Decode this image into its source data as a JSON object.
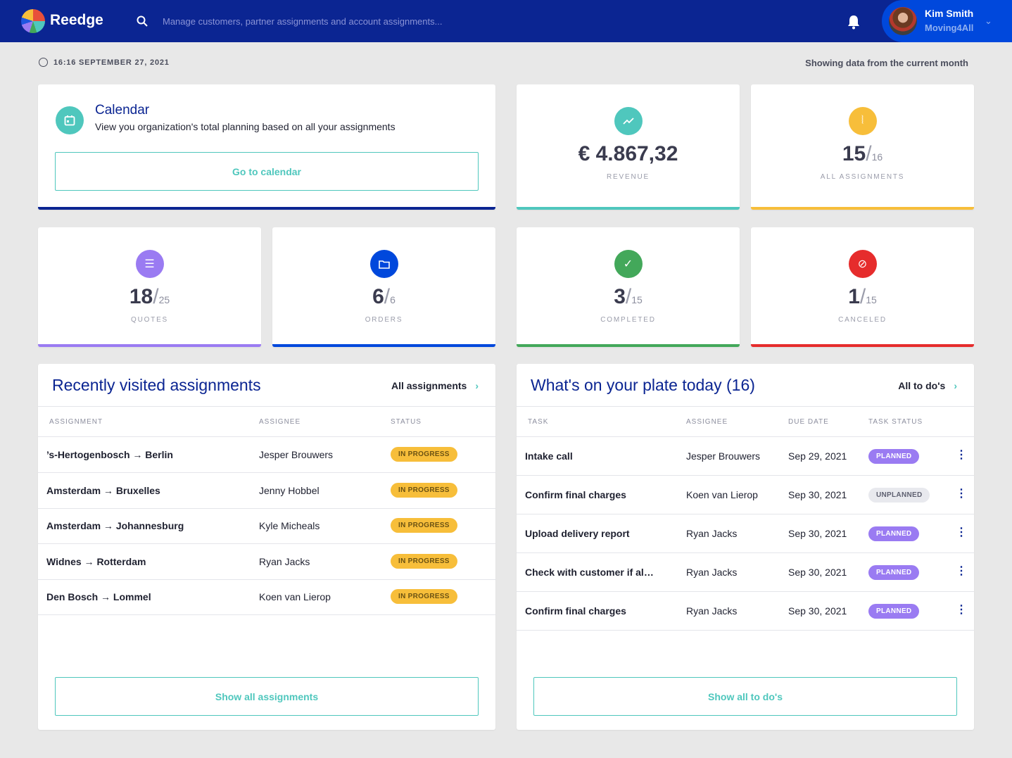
{
  "header": {
    "brand": "Reedge",
    "search_placeholder": "Manage customers, partner assignments and account assignments...",
    "user_name": "Kim Smith",
    "user_org": "Moving4All"
  },
  "meta": {
    "datetime": "16:16 SEPTEMBER 27, 2021",
    "showing": "Showing data from the current month"
  },
  "calendar": {
    "title": "Calendar",
    "description": "View you organization's total planning based on all your assignments",
    "button": "Go to calendar"
  },
  "stats": [
    {
      "value": "€ 4.867,32",
      "label": "REVENUE",
      "color": "#4fc7bd",
      "icon": "trend-icon"
    },
    {
      "value": "15",
      "total": "16",
      "label": "ALL ASSIGNMENTS",
      "color": "#f7be3a",
      "icon": "paperclip-icon"
    },
    {
      "value": "18",
      "total": "25",
      "label": "QUOTES",
      "color": "#9a7bf2",
      "icon": "quote-icon"
    },
    {
      "value": "6",
      "total": "6",
      "label": "ORDERS",
      "color": "#0048dc",
      "icon": "folder-icon"
    },
    {
      "value": "3",
      "total": "15",
      "label": "COMPLETED",
      "color": "#43a85a",
      "icon": "check-icon"
    },
    {
      "value": "1",
      "total": "15",
      "label": "CANCELED",
      "color": "#e62c2c",
      "icon": "ban-icon"
    }
  ],
  "recent": {
    "title": "Recently visited assignments",
    "link": "All assignments",
    "columns": [
      "ASSIGNMENT",
      "ASSIGNEE",
      "STATUS"
    ],
    "rows": [
      {
        "from": "’s-Hertogenbosch",
        "to": "Berlin",
        "assignee": "Jesper Brouwers",
        "status": "IN PROGRESS"
      },
      {
        "from": "Amsterdam",
        "to": "Bruxelles",
        "assignee": "Jenny Hobbel",
        "status": "IN PROGRESS"
      },
      {
        "from": "Amsterdam",
        "to": "Johannesburg",
        "assignee": "Kyle Micheals",
        "status": "IN PROGRESS"
      },
      {
        "from": "Widnes",
        "to": "Rotterdam",
        "assignee": "Ryan Jacks",
        "status": "IN PROGRESS"
      },
      {
        "from": "Den Bosch",
        "to": "Lommel",
        "assignee": "Koen van Lierop",
        "status": "IN PROGRESS"
      }
    ],
    "button": "Show all assignments",
    "arrow": "→"
  },
  "todos": {
    "title": "What's on your plate today (16)",
    "link": "All to do's",
    "columns": [
      "TASK",
      "ASSIGNEE",
      "DUE DATE",
      "TASK STATUS"
    ],
    "rows": [
      {
        "task": "Intake call",
        "assignee": "Jesper Brouwers",
        "due": "Sep 29, 2021",
        "status": "PLANNED"
      },
      {
        "task": "Confirm final charges",
        "assignee": "Koen van Lierop",
        "due": "Sep 30, 2021",
        "status": "UNPLANNED"
      },
      {
        "task": "Upload delivery report",
        "assignee": "Ryan Jacks",
        "due": "Sep 30, 2021",
        "status": "PLANNED"
      },
      {
        "task": "Check with customer if al…",
        "assignee": "Ryan Jacks",
        "due": "Sep 30, 2021",
        "status": "PLANNED"
      },
      {
        "task": "Confirm final charges",
        "assignee": "Ryan Jacks",
        "due": "Sep 30, 2021",
        "status": "PLANNED"
      }
    ],
    "button": "Show all to do's"
  }
}
